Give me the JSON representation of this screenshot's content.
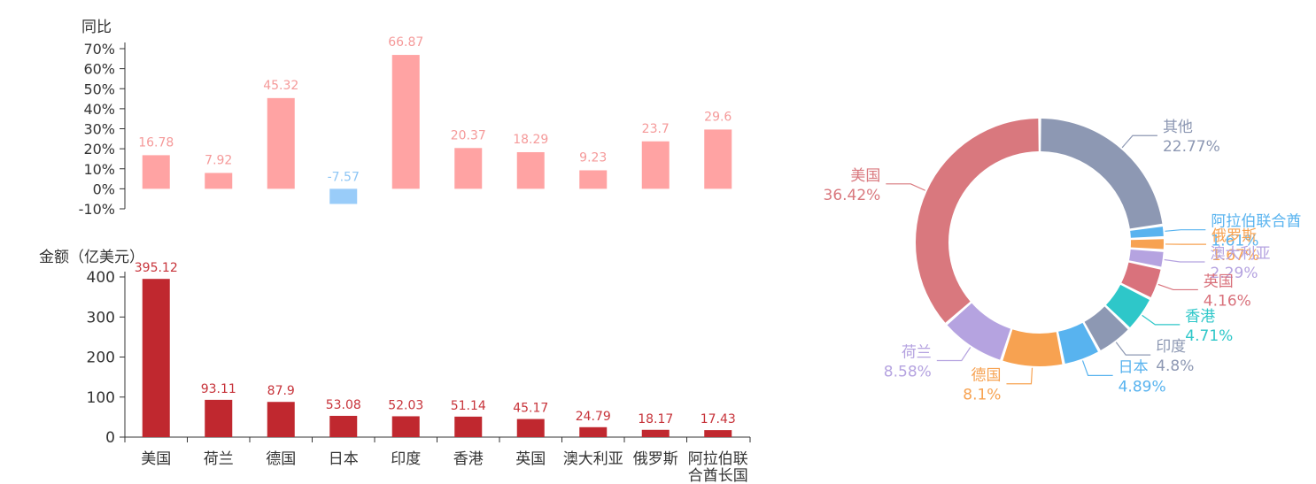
{
  "chart_data": [
    {
      "type": "bar",
      "ylabel": "同比",
      "ylim": [
        -10,
        70
      ],
      "yticks": [
        "70%",
        "60%",
        "50%",
        "40%",
        "30%",
        "20%",
        "10%",
        "0%",
        "-10%"
      ],
      "categories": [
        "美国",
        "荷兰",
        "德国",
        "日本",
        "印度",
        "香港",
        "英国",
        "澳大利亚",
        "俄罗斯",
        "阿拉伯联合酋长国"
      ],
      "values": [
        16.78,
        7.92,
        45.32,
        -7.57,
        66.87,
        20.37,
        18.29,
        9.23,
        23.7,
        29.6
      ],
      "value_labels": [
        "16.78",
        "7.92",
        "45.32",
        "-7.57",
        "66.87",
        "20.37",
        "18.29",
        "9.23",
        "23.7",
        "29.6"
      ],
      "colors": {
        "positive": "#ffa3a3",
        "negative": "#99ccf9",
        "positive_label": "#f59a9a",
        "negative_label": "#8ec6f5"
      }
    },
    {
      "type": "bar",
      "ylabel": "金额（亿美元）",
      "ylim": [
        0,
        400
      ],
      "yticks": [
        "400",
        "300",
        "200",
        "100",
        "0"
      ],
      "categories": [
        "美国",
        "荷兰",
        "德国",
        "日本",
        "印度",
        "香港",
        "英国",
        "澳大利亚",
        "俄罗斯",
        "阿拉伯联合酋长国"
      ],
      "x_tick_labels": [
        [
          "美国"
        ],
        [
          "荷兰"
        ],
        [
          "德国"
        ],
        [
          "日本"
        ],
        [
          "印度"
        ],
        [
          "香港"
        ],
        [
          "英国"
        ],
        [
          "澳大利亚"
        ],
        [
          "俄罗斯"
        ],
        [
          "阿拉伯联",
          "合酋长国"
        ]
      ],
      "values": [
        395.12,
        93.11,
        87.9,
        53.08,
        52.03,
        51.14,
        45.17,
        24.79,
        18.17,
        17.43
      ],
      "value_labels": [
        "395.12",
        "93.11",
        "87.9",
        "53.08",
        "52.03",
        "51.14",
        "45.17",
        "24.79",
        "18.17",
        "17.43"
      ],
      "colors": {
        "bar": "#c0282f",
        "label": "#c7333a"
      }
    },
    {
      "type": "pie",
      "donut": true,
      "start": "12 o'clock, clockwise",
      "slices": [
        {
          "name": "其他",
          "value": 22.77,
          "label": "22.77%",
          "color": "#8d98b3"
        },
        {
          "name": "阿拉伯联合酋",
          "value": 1.61,
          "label": "1.61%",
          "color": "#58b3ef"
        },
        {
          "name": "俄罗斯",
          "value": 1.67,
          "label": "1.67%",
          "color": "#f7a251"
        },
        {
          "name": "澳大利亚",
          "value": 2.29,
          "label": "2.29%",
          "color": "#b5a3e0"
        },
        {
          "name": "英国",
          "value": 4.16,
          "label": "4.16%",
          "color": "#d9727c"
        },
        {
          "name": "香港",
          "value": 4.71,
          "label": "4.71%",
          "color": "#2ec7c9"
        },
        {
          "name": "印度",
          "value": 4.8,
          "label": "4.8%",
          "color": "#8d98b3"
        },
        {
          "name": "日本",
          "value": 4.89,
          "label": "4.89%",
          "color": "#58b3ef"
        },
        {
          "name": "德国",
          "value": 8.1,
          "label": "8.1%",
          "color": "#f7a251"
        },
        {
          "name": "荷兰",
          "value": 8.58,
          "label": "8.58%",
          "color": "#b5a3e0"
        },
        {
          "name": "美国",
          "value": 36.42,
          "label": "36.42%",
          "color": "#d9787e"
        }
      ]
    }
  ]
}
